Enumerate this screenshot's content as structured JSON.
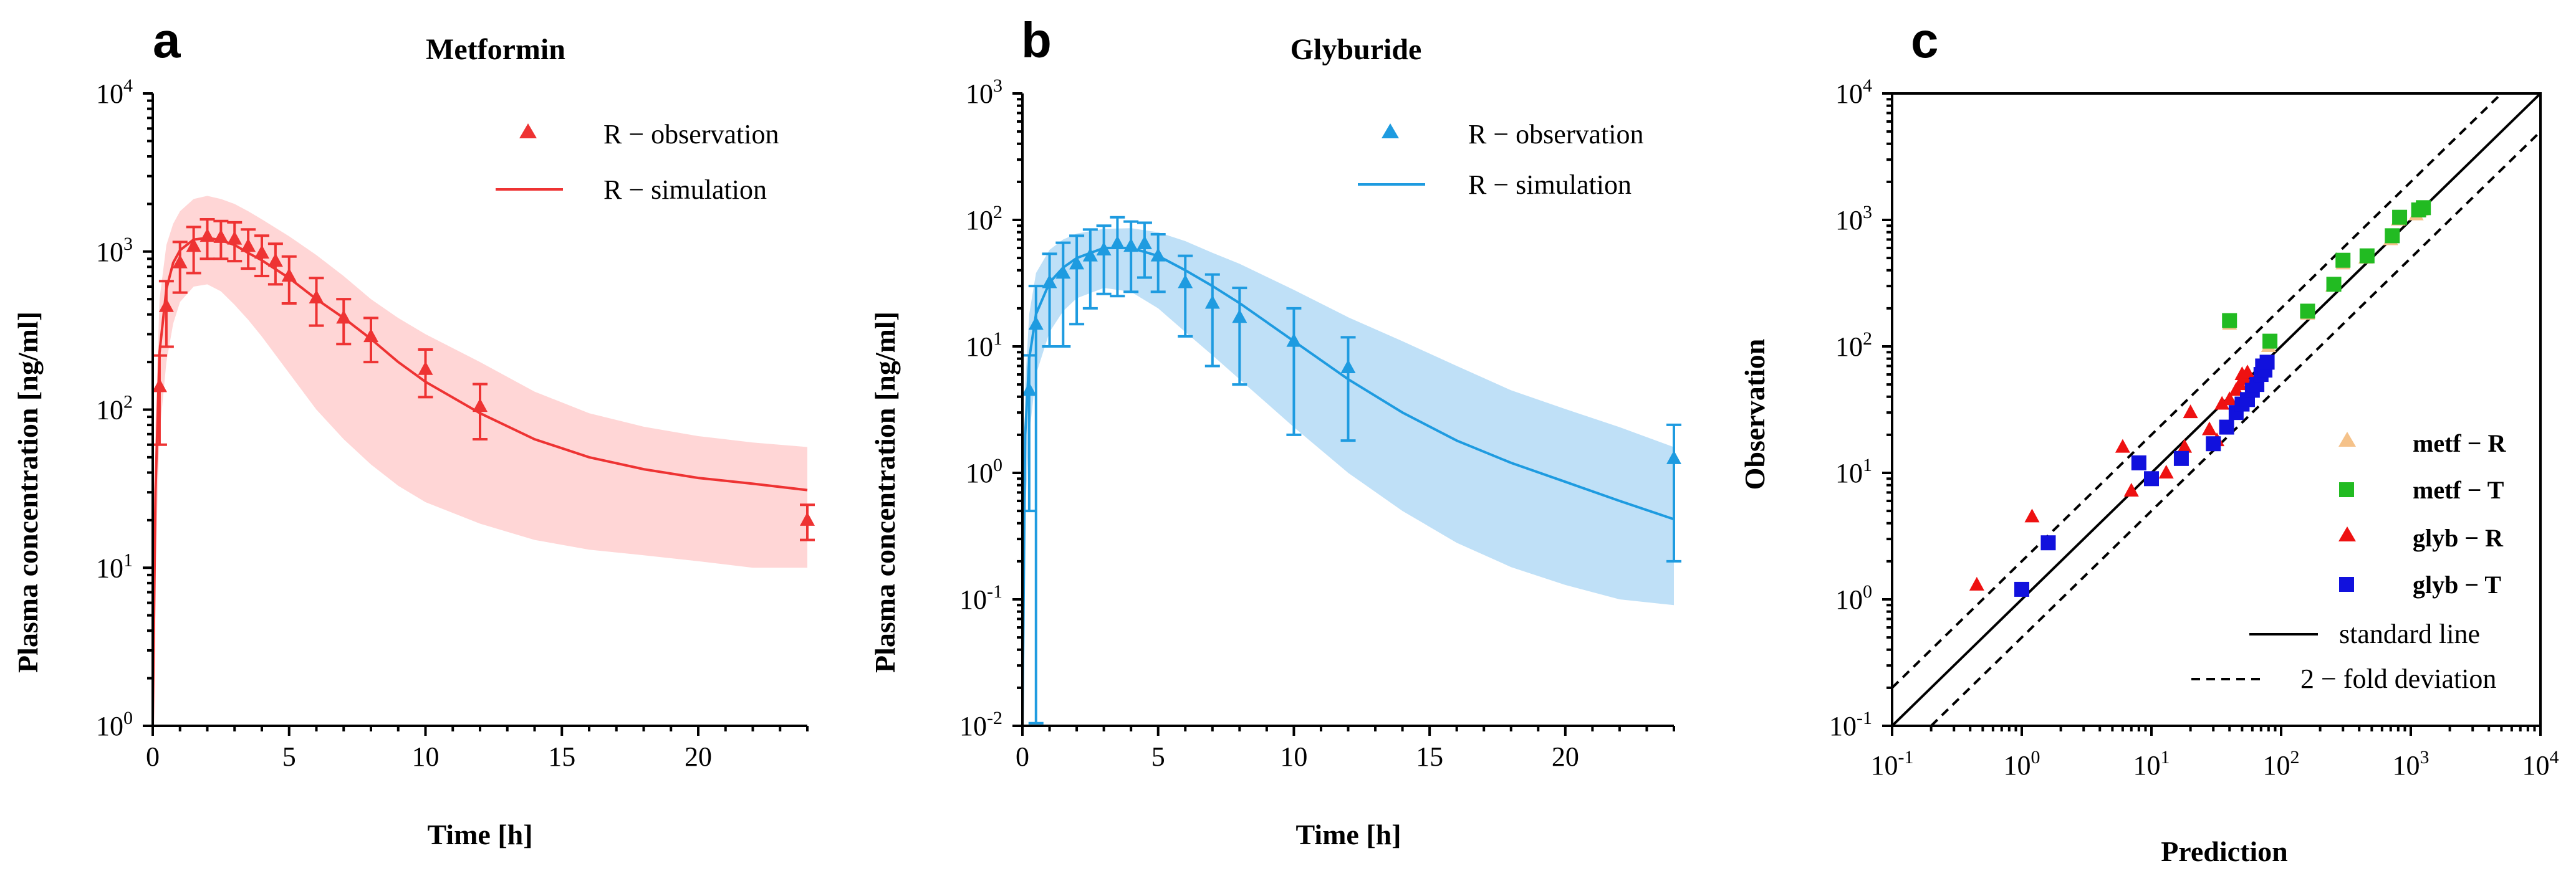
{
  "chart_data": [
    {
      "id": "a",
      "type": "line",
      "panel_label": "a",
      "title": "Metformin",
      "xlabel": "Time [h]",
      "ylabel": "Plasma concentration [ng/ml]",
      "xlim": [
        0,
        24
      ],
      "ylim": [
        1,
        10000
      ],
      "yscale": "log",
      "x_ticks": [
        "0",
        "5",
        "10",
        "15",
        "20"
      ],
      "x_tick_values": [
        0,
        5,
        10,
        15,
        20
      ],
      "y_tick_values": [
        1,
        10,
        100,
        1000,
        10000
      ],
      "y_tick_labels": [
        {
          "base": "10",
          "exp": "0"
        },
        {
          "base": "10",
          "exp": "1"
        },
        {
          "base": "10",
          "exp": "2"
        },
        {
          "base": "10",
          "exp": "3"
        },
        {
          "base": "10",
          "exp": "4"
        }
      ],
      "color": "#ee3333",
      "band_color": "#ffd6d6",
      "legend": [
        "R − observation",
        "R − simulation"
      ],
      "legend_position": "top-right",
      "simulation": {
        "x": [
          0,
          0.1,
          0.25,
          0.5,
          0.75,
          1,
          1.5,
          2,
          2.5,
          3,
          3.5,
          4,
          5,
          6,
          7,
          8,
          9,
          10,
          12,
          14,
          16,
          18,
          20,
          22,
          24
        ],
        "y": [
          1,
          30,
          230,
          580,
          850,
          1020,
          1190,
          1220,
          1180,
          1100,
          980,
          880,
          680,
          500,
          380,
          280,
          200,
          150,
          95,
          65,
          50,
          42,
          37,
          34,
          31
        ],
        "lower": [
          1,
          10,
          70,
          200,
          350,
          480,
          600,
          620,
          560,
          460,
          370,
          290,
          170,
          100,
          65,
          45,
          33,
          26,
          19,
          15,
          13,
          12,
          11,
          10,
          10
        ],
        "upper": [
          1,
          80,
          500,
          1100,
          1500,
          1800,
          2150,
          2250,
          2150,
          2000,
          1800,
          1600,
          1250,
          950,
          700,
          500,
          380,
          300,
          200,
          130,
          95,
          78,
          68,
          62,
          58
        ]
      },
      "observation": {
        "x": [
          0.25,
          0.5,
          1,
          1.5,
          2,
          2.5,
          3,
          3.5,
          4,
          4.5,
          5,
          6,
          7,
          8,
          10,
          12,
          24
        ],
        "y": [
          140,
          450,
          850,
          1080,
          1250,
          1230,
          1200,
          1080,
          980,
          870,
          700,
          510,
          380,
          290,
          180,
          105,
          20
        ],
        "err": [
          80,
          200,
          300,
          350,
          350,
          330,
          330,
          300,
          280,
          250,
          230,
          170,
          120,
          90,
          60,
          40,
          5
        ]
      }
    },
    {
      "id": "b",
      "type": "line",
      "panel_label": "b",
      "title": "Glyburide",
      "xlabel": "Time [h]",
      "ylabel": "Plasma concentration [ng/ml]",
      "xlim": [
        0,
        24
      ],
      "ylim": [
        0.01,
        1000
      ],
      "yscale": "log",
      "x_ticks": [
        "0",
        "5",
        "10",
        "15",
        "20"
      ],
      "x_tick_values": [
        0,
        5,
        10,
        15,
        20
      ],
      "y_tick_values": [
        0.01,
        0.1,
        1,
        10,
        100,
        1000
      ],
      "y_tick_labels": [
        {
          "base": "10",
          "exp": "-2"
        },
        {
          "base": "10",
          "exp": "-1"
        },
        {
          "base": "10",
          "exp": "0"
        },
        {
          "base": "10",
          "exp": "1"
        },
        {
          "base": "10",
          "exp": "2"
        },
        {
          "base": "10",
          "exp": "3"
        }
      ],
      "color": "#1e9be0",
      "band_color": "#bfe0f7",
      "legend": [
        "R − observation",
        "R − simulation"
      ],
      "legend_position": "top-right",
      "simulation": {
        "x": [
          0,
          0.1,
          0.25,
          0.5,
          1,
          1.5,
          2,
          3,
          4,
          5,
          6,
          7,
          8,
          10,
          12,
          14,
          16,
          18,
          20,
          22,
          24
        ],
        "y": [
          0.01,
          2,
          8,
          18,
          32,
          42,
          50,
          60,
          60,
          52,
          40,
          30,
          22,
          11,
          5.5,
          3,
          1.8,
          1.2,
          0.85,
          0.6,
          0.43
        ],
        "lower": [
          0.01,
          0.5,
          2,
          6,
          13,
          19,
          24,
          29,
          27,
          20,
          13,
          8.5,
          5.5,
          2.3,
          1,
          0.5,
          0.28,
          0.18,
          0.13,
          0.1,
          0.09
        ],
        "upper": [
          0.01,
          5,
          18,
          38,
          58,
          70,
          78,
          85,
          86,
          80,
          68,
          55,
          45,
          28,
          17,
          11,
          7,
          4.5,
          3.2,
          2.3,
          1.6
        ]
      },
      "observation": {
        "x": [
          0.25,
          0.5,
          1,
          1.5,
          2,
          2.5,
          3,
          3.5,
          4,
          4.5,
          5,
          6,
          7,
          8,
          10,
          12,
          24
        ],
        "y": [
          4.5,
          15,
          32,
          38,
          45,
          52,
          58,
          65,
          62,
          65,
          52,
          32,
          22,
          17,
          11,
          6.8,
          1.3
        ],
        "err": [
          4,
          15,
          22,
          28,
          30,
          32,
          32,
          40,
          35,
          30,
          25,
          20,
          15,
          12,
          9,
          5,
          1.1
        ]
      }
    },
    {
      "id": "c",
      "type": "scatter",
      "panel_label": "c",
      "title": "",
      "xlabel": "Prediction",
      "ylabel": "Observation",
      "xscale": "log",
      "yscale": "log",
      "xlim": [
        0.1,
        10000
      ],
      "ylim": [
        0.1,
        10000
      ],
      "x_tick_values": [
        0.1,
        1,
        10,
        100,
        1000,
        10000
      ],
      "y_tick_values": [
        0.1,
        1,
        10,
        100,
        1000,
        10000
      ],
      "x_tick_labels": [
        {
          "base": "10",
          "exp": "-1"
        },
        {
          "base": "10",
          "exp": "0"
        },
        {
          "base": "10",
          "exp": "1"
        },
        {
          "base": "10",
          "exp": "2"
        },
        {
          "base": "10",
          "exp": "3"
        },
        {
          "base": "10",
          "exp": "4"
        }
      ],
      "y_tick_labels": [
        {
          "base": "10",
          "exp": "-1"
        },
        {
          "base": "10",
          "exp": "0"
        },
        {
          "base": "10",
          "exp": "1"
        },
        {
          "base": "10",
          "exp": "2"
        },
        {
          "base": "10",
          "exp": "3"
        },
        {
          "base": "10",
          "exp": "4"
        }
      ],
      "legend_position": "bottom-right",
      "series": [
        {
          "name": "metf − R",
          "marker": "triangle",
          "color": "#f5c28a",
          "x": [
            40,
            80,
            160,
            250,
            300,
            450,
            700,
            800,
            1100,
            1200
          ],
          "y": [
            150,
            100,
            180,
            300,
            450,
            500,
            700,
            1000,
            1100,
            1200
          ]
        },
        {
          "name": "metf − T",
          "marker": "square",
          "color": "#22bb22",
          "x": [
            40,
            82,
            160,
            255,
            300,
            460,
            720,
            820,
            1150,
            1250
          ],
          "y": [
            160,
            110,
            190,
            310,
            480,
            520,
            750,
            1050,
            1200,
            1250
          ]
        },
        {
          "name": "glyb − R",
          "marker": "triangle",
          "color": "#ee1111",
          "x": [
            0.45,
            1.2,
            6,
            7,
            13,
            18,
            20,
            28,
            32,
            35,
            40,
            45,
            48,
            50,
            52,
            55
          ],
          "y": [
            1.3,
            4.5,
            16,
            7.2,
            10,
            16,
            30,
            22,
            18,
            35,
            38,
            45,
            50,
            60,
            55,
            62
          ]
        },
        {
          "name": "glyb − T",
          "marker": "square",
          "color": "#1111dd",
          "x": [
            1,
            1.6,
            8,
            10,
            17,
            30,
            38,
            45,
            50,
            55,
            60,
            65,
            70,
            72,
            75,
            78
          ],
          "y": [
            1.2,
            2.8,
            12,
            9,
            13,
            17,
            23,
            30,
            35,
            38,
            45,
            50,
            60,
            70,
            65,
            75
          ]
        }
      ],
      "reference_lines": [
        {
          "name": "standard line",
          "style": "solid",
          "fold": 1
        },
        {
          "name": "2 − fold deviation",
          "style": "dashed",
          "fold": 2
        }
      ]
    }
  ]
}
